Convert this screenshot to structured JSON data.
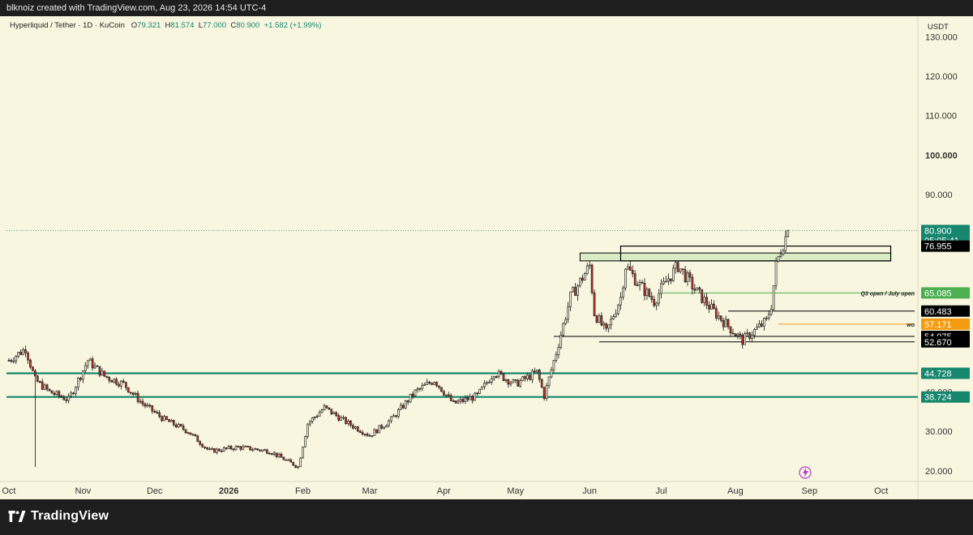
{
  "header": {
    "text": "blknoiz created with TradingView.com, Aug 23, 2026 14:54 UTC-4"
  },
  "legend": {
    "symbol": "Hyperliquid / Tether · 1D · KuCoin",
    "o_label": "O",
    "o": "79.321",
    "h_label": "H",
    "h": "81.574",
    "l_label": "L",
    "l": "77.000",
    "c_label": "C",
    "c": "80.900",
    "change": "+1.582 (+1.99%)"
  },
  "footer": {
    "brand": "TradingView"
  },
  "colors": {
    "background": "#f8f6df",
    "up": "#111111",
    "down": "#c0392b",
    "teal": "#16866e",
    "green": "#4caf50",
    "orange": "#f39c12",
    "black": "#000000"
  },
  "chart_data": {
    "type": "candlestick",
    "currency": "USDT",
    "y_ticks": [
      20,
      30,
      40,
      90,
      100,
      110,
      120,
      130
    ],
    "y_tick_labels": [
      "20.000",
      "30.000",
      "40.000",
      "90.000",
      "100.000",
      "110.000",
      "120.000",
      "130.000"
    ],
    "x_months": [
      {
        "label": "Oct",
        "date": "2025-10-01"
      },
      {
        "label": "Nov",
        "date": "2025-11-01"
      },
      {
        "label": "Dec",
        "date": "2025-12-01"
      },
      {
        "label": "2026",
        "date": "2026-01-01",
        "bold": true
      },
      {
        "label": "Feb",
        "date": "2026-02-01"
      },
      {
        "label": "Mar",
        "date": "2026-03-01"
      },
      {
        "label": "Apr",
        "date": "2026-04-01"
      },
      {
        "label": "May",
        "date": "2026-05-01"
      },
      {
        "label": "Jun",
        "date": "2026-06-01"
      },
      {
        "label": "Jul",
        "date": "2026-07-01"
      },
      {
        "label": "Aug",
        "date": "2026-08-01"
      },
      {
        "label": "Sep",
        "date": "2026-09-01"
      },
      {
        "label": "Oct",
        "date": "2026-10-01"
      }
    ],
    "x_start": "2025-09-30",
    "x_end": "2026-10-15",
    "last_date": "2026-08-23",
    "y_min": 17.3,
    "y_max": 135.2,
    "price_anchors": [
      [
        "2025-10-01",
        48
      ],
      [
        "2025-10-08",
        51
      ],
      [
        "2025-10-12",
        43
      ],
      [
        "2025-10-18",
        40
      ],
      [
        "2025-10-26",
        38
      ],
      [
        "2025-11-03",
        48
      ],
      [
        "2025-11-10",
        44
      ],
      [
        "2025-11-18",
        42
      ],
      [
        "2025-11-26",
        37
      ],
      [
        "2025-12-05",
        33
      ],
      [
        "2025-12-15",
        30
      ],
      [
        "2025-12-24",
        25
      ],
      [
        "2026-01-05",
        26
      ],
      [
        "2026-01-18",
        25
      ],
      [
        "2026-01-30",
        21
      ],
      [
        "2026-02-03",
        32
      ],
      [
        "2026-02-10",
        36
      ],
      [
        "2026-02-20",
        32
      ],
      [
        "2026-03-01",
        29
      ],
      [
        "2026-03-10",
        33
      ],
      [
        "2026-03-20",
        40
      ],
      [
        "2026-03-28",
        43
      ],
      [
        "2026-04-05",
        37
      ],
      [
        "2026-04-15",
        39
      ],
      [
        "2026-04-22",
        45
      ],
      [
        "2026-05-01",
        42
      ],
      [
        "2026-05-10",
        45
      ],
      [
        "2026-05-13",
        39
      ],
      [
        "2026-05-18",
        50
      ],
      [
        "2026-05-24",
        64
      ],
      [
        "2026-06-01",
        72
      ],
      [
        "2026-06-03",
        60
      ],
      [
        "2026-06-08",
        55
      ],
      [
        "2026-06-14",
        64
      ],
      [
        "2026-06-16",
        72
      ],
      [
        "2026-06-22",
        67
      ],
      [
        "2026-06-28",
        63
      ],
      [
        "2026-07-03",
        68
      ],
      [
        "2026-07-08",
        72
      ],
      [
        "2026-07-15",
        66
      ],
      [
        "2026-07-22",
        61
      ],
      [
        "2026-07-30",
        56
      ],
      [
        "2026-08-04",
        53
      ],
      [
        "2026-08-10",
        56
      ],
      [
        "2026-08-14",
        58
      ],
      [
        "2026-08-16",
        62
      ],
      [
        "2026-08-18",
        72
      ],
      [
        "2026-08-20",
        76
      ],
      [
        "2026-08-23",
        80.9
      ]
    ],
    "wicks": [
      {
        "date": "2025-10-12",
        "low": 21
      }
    ],
    "levels": [
      {
        "value": 80.9,
        "label": "80.900",
        "sublabel": "05:05:41",
        "color": "#16866e",
        "line": "dotted",
        "from": "2025-09-30"
      },
      {
        "value": 76.955,
        "label": "76.955",
        "color": "#000000",
        "line": "box-top"
      },
      {
        "value": 65.085,
        "label": "65.085",
        "color": "#4caf50",
        "line": "solid",
        "from": "2026-07-01",
        "annotation": "Q3 open / July open"
      },
      {
        "value": 60.483,
        "label": "60.483",
        "color": "#000000",
        "line": "solid",
        "from": "2026-07-29"
      },
      {
        "value": 57.171,
        "label": "57.171",
        "color": "#f39c12",
        "line": "solid",
        "from": "2026-08-19",
        "annotation": "wo"
      },
      {
        "value": 54.075,
        "label": "54.075",
        "color": "#000000",
        "line": "solid",
        "from": "2026-05-17"
      },
      {
        "value": 52.67,
        "label": "52.670",
        "color": "#000000",
        "line": "solid",
        "from": "2026-06-05"
      },
      {
        "value": 44.728,
        "label": "44.728",
        "color": "#16866e",
        "line": "thick",
        "from": "2025-09-30"
      },
      {
        "value": 38.724,
        "label": "38.724",
        "color": "#16866e",
        "line": "thick",
        "from": "2025-09-30"
      }
    ],
    "zones": [
      {
        "from": "2026-05-28",
        "to": "2026-10-05",
        "high": 75.2,
        "low": 73.2,
        "fill": "#d9ecc6"
      }
    ],
    "boxes": [
      {
        "from": "2026-06-14",
        "to": "2026-10-05",
        "high": 76.955,
        "low": 73.2
      }
    ]
  }
}
